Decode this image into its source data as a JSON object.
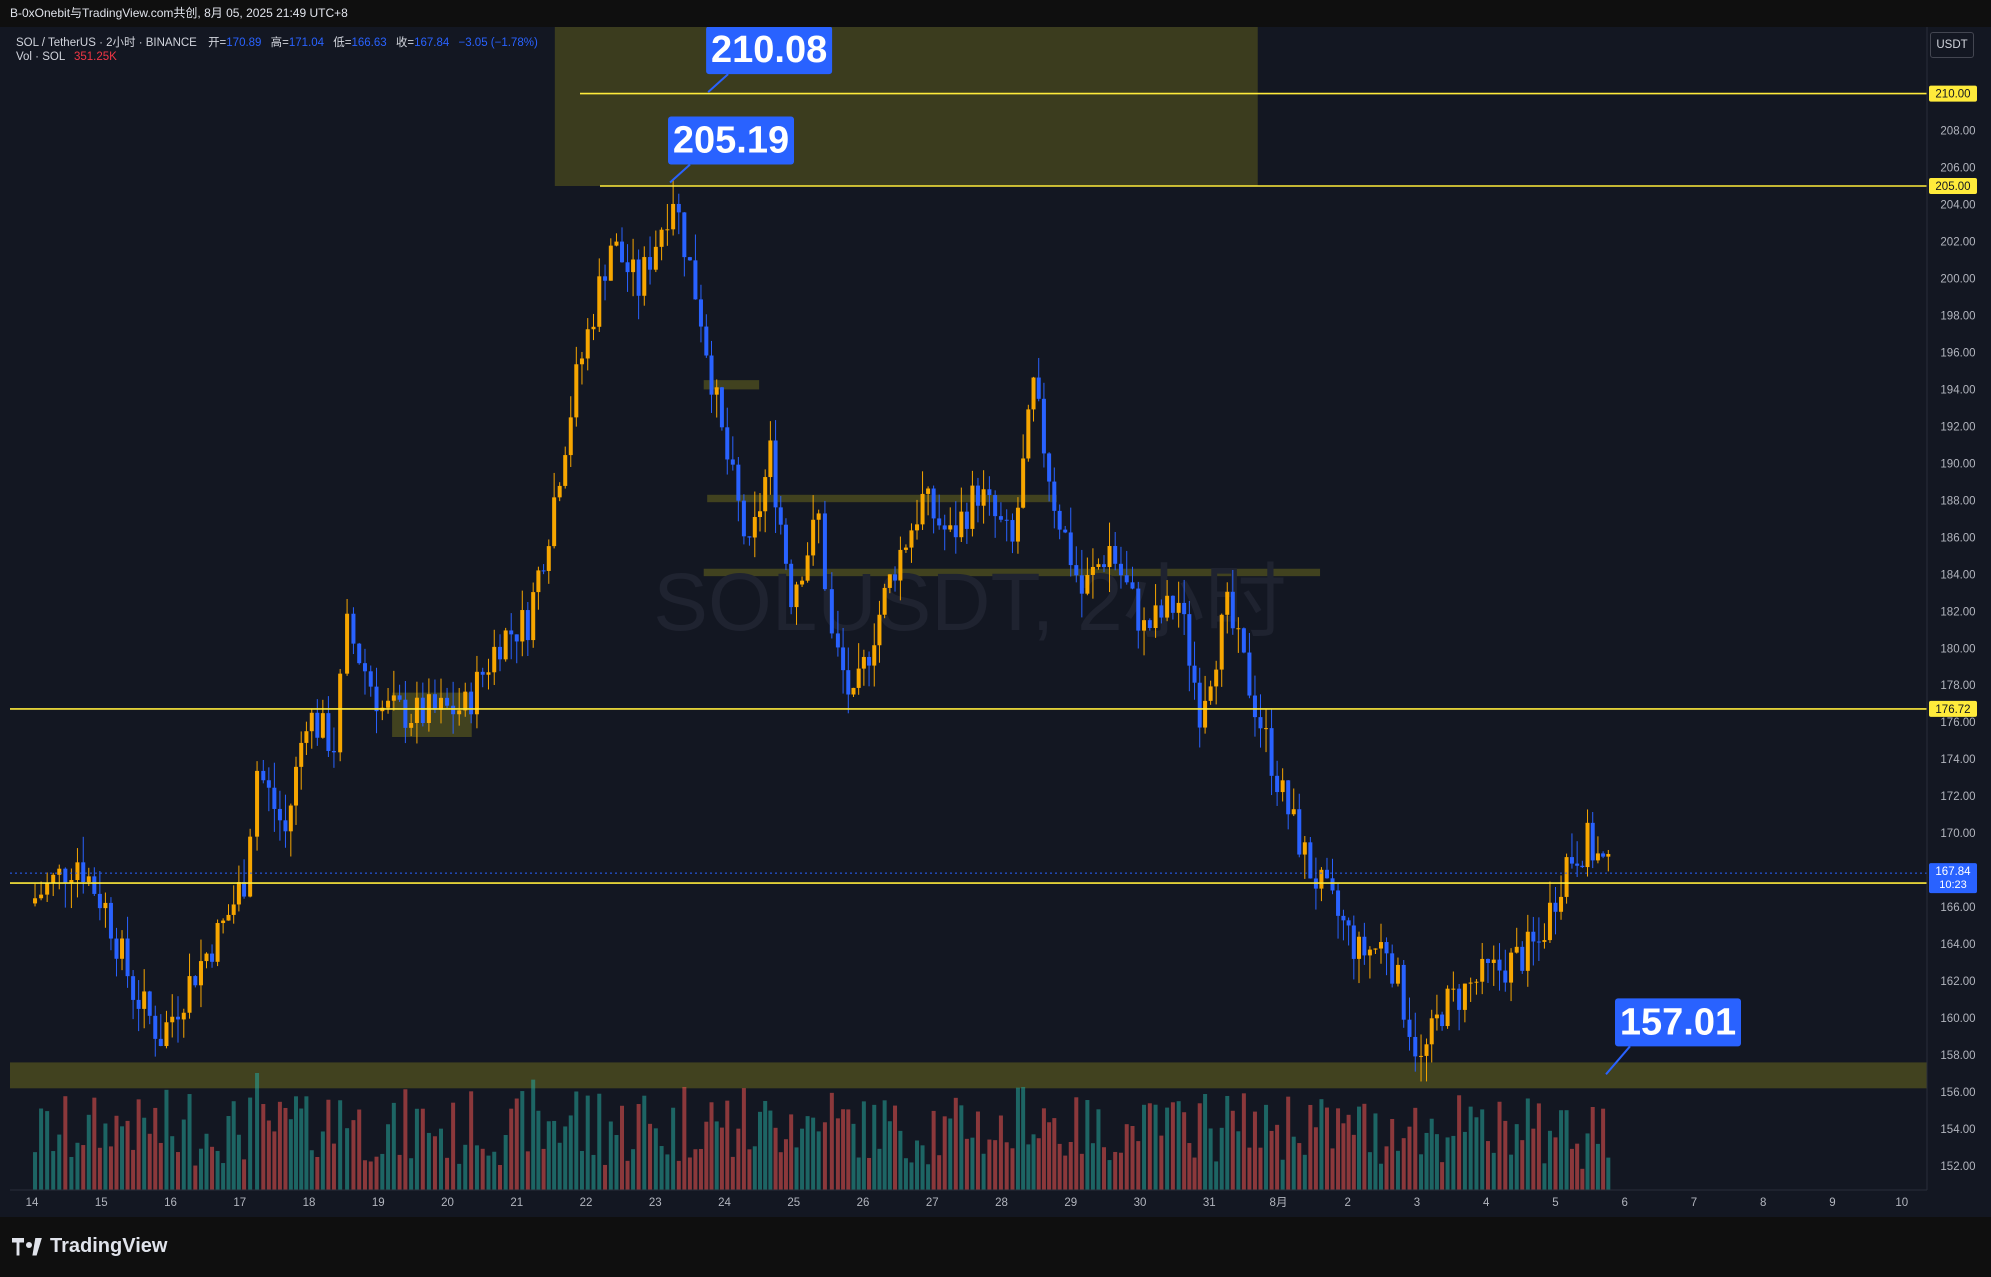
{
  "header": {
    "share_text": "B-0xOnebit与TradingView.com共创,  8月 05, 2025 21:49 UTC+8"
  },
  "legend": {
    "symbol_line": "SOL / TetherUS · 2小时 · BINANCE",
    "open_label": "开=",
    "open": "170.89",
    "high_label": "高=",
    "high": "171.04",
    "low_label": "低=",
    "low": "166.63",
    "close_label": "收=",
    "close": "167.84",
    "change": "−3.05 (−1.78%)",
    "volume_label": "Vol · SOL",
    "volume": "351.25K"
  },
  "watermark": "SOLUSDT, 2小时",
  "currency_button": "USDT",
  "brand": "TradingView",
  "colors": {
    "background": "#131722",
    "up": "#f7a600",
    "down": "#2962ff",
    "vol_up": "#26a69a",
    "vol_down": "#ef5350",
    "level_line": "#ffeb3b",
    "zone": "#4a4a1e",
    "callout": "#2962ff"
  },
  "chart_data": {
    "type": "candlestick",
    "symbol": "SOLUSDT",
    "interval": "2小时",
    "x_ticks": [
      "14",
      "15",
      "16",
      "17",
      "18",
      "19",
      "20",
      "21",
      "22",
      "23",
      "24",
      "25",
      "26",
      "27",
      "28",
      "29",
      "30",
      "31",
      "8月",
      "2",
      "3",
      "4",
      "5",
      "6",
      "7",
      "8",
      "9",
      "10"
    ],
    "y_ticks": [
      "152.00",
      "154.00",
      "156.00",
      "158.00",
      "160.00",
      "162.00",
      "164.00",
      "166.00",
      "168.00",
      "170.00",
      "172.00",
      "174.00",
      "176.00",
      "178.00",
      "180.00",
      "182.00",
      "184.00",
      "186.00",
      "188.00",
      "190.00",
      "192.00",
      "194.00",
      "196.00",
      "198.00",
      "200.00",
      "202.00",
      "204.00",
      "206.00",
      "208.00",
      "210.00"
    ],
    "ylim": [
      150.7,
      213.6
    ],
    "horizontal_levels": [
      {
        "label": "210.00",
        "price": 210.0
      },
      {
        "label": "205.00",
        "price": 205.0
      },
      {
        "label": "176.72",
        "price": 176.72
      },
      {
        "label": "167.30",
        "price": 167.3
      }
    ],
    "current_price": {
      "label": "167.84",
      "countdown": "10:23",
      "price": 167.84
    },
    "annotations": [
      {
        "text": "210.08",
        "price": 210.08,
        "day": 23.85
      },
      {
        "text": "205.19",
        "price": 205.19,
        "day": 23.3
      },
      {
        "text": "157.01",
        "price": 157.01,
        "day": 4.85,
        "month": "8月"
      }
    ],
    "zones": [
      {
        "from_day": 21.55,
        "to_day": 31.7,
        "price_low": 205.0,
        "price_high": 213.6
      },
      {
        "from_day": 13.9,
        "to_day": 10.9,
        "price_low": 156.2,
        "price_high": 157.6
      },
      {
        "from_day": 23.7,
        "to_day": 24.5,
        "price_low": 194.0,
        "price_high": 194.5
      },
      {
        "from_day": 23.75,
        "to_day": 28.8,
        "price_low": 187.9,
        "price_high": 188.3
      },
      {
        "from_day": 23.7,
        "to_day": 1.6,
        "price_low": 183.9,
        "price_high": 184.3
      },
      {
        "from_day": 19.2,
        "to_day": 20.35,
        "price_low": 175.2,
        "price_high": 177.6
      }
    ],
    "price_path": [
      [
        14.0,
        166.2
      ],
      [
        14.7,
        168.6
      ],
      [
        15.1,
        166.0
      ],
      [
        15.5,
        161.5
      ],
      [
        15.9,
        159.0
      ],
      [
        16.4,
        162.5
      ],
      [
        16.8,
        165.0
      ],
      [
        17.1,
        167.5
      ],
      [
        17.3,
        173.5
      ],
      [
        17.7,
        170.0
      ],
      [
        18.0,
        176.5
      ],
      [
        18.4,
        174.8
      ],
      [
        18.6,
        181.0
      ],
      [
        19.1,
        176.7
      ],
      [
        19.6,
        176.4
      ],
      [
        20.3,
        176.8
      ],
      [
        20.8,
        180.5
      ],
      [
        21.2,
        181.5
      ],
      [
        21.5,
        186.5
      ],
      [
        21.9,
        194.5
      ],
      [
        22.4,
        202.0
      ],
      [
        22.8,
        199.5
      ],
      [
        23.3,
        204.6
      ],
      [
        23.7,
        198.0
      ],
      [
        24.0,
        191.5
      ],
      [
        24.4,
        185.0
      ],
      [
        24.7,
        190.5
      ],
      [
        25.0,
        183.0
      ],
      [
        25.4,
        187.0
      ],
      [
        25.6,
        180.5
      ],
      [
        25.9,
        176.8
      ],
      [
        26.2,
        181.0
      ],
      [
        26.5,
        184.5
      ],
      [
        26.9,
        188.0
      ],
      [
        27.3,
        186.0
      ],
      [
        27.7,
        188.5
      ],
      [
        28.2,
        185.5
      ],
      [
        28.5,
        194.0
      ],
      [
        28.8,
        188.0
      ],
      [
        29.2,
        183.0
      ],
      [
        29.6,
        185.5
      ],
      [
        30.1,
        181.0
      ],
      [
        30.6,
        182.5
      ],
      [
        30.9,
        176.8
      ],
      [
        31.3,
        182.0
      ],
      [
        31.7,
        177.0
      ],
      [
        32.1,
        172.0
      ],
      [
        32.5,
        168.0
      ],
      [
        32.9,
        165.5
      ],
      [
        33.2,
        163.5
      ],
      [
        33.6,
        164.0
      ],
      [
        34.1,
        157.5
      ],
      [
        34.4,
        160.5
      ],
      [
        34.9,
        162.0
      ],
      [
        35.4,
        163.0
      ],
      [
        35.8,
        164.0
      ],
      [
        36.2,
        168.5
      ],
      [
        36.5,
        169.5
      ],
      [
        36.8,
        167.84
      ]
    ]
  }
}
